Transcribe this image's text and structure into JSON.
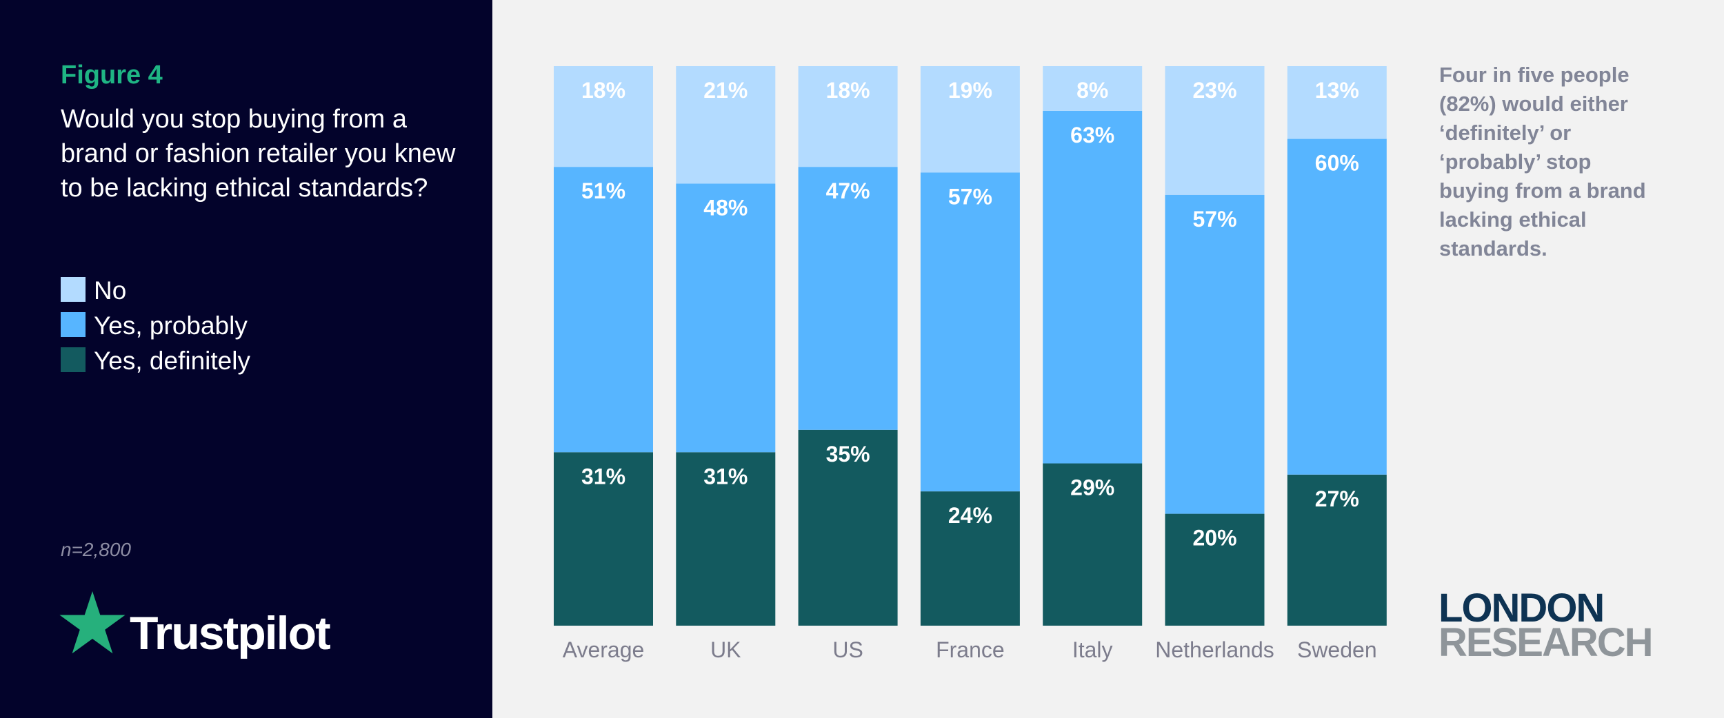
{
  "figure_label": "Figure 4",
  "question": "Would you stop buying from a brand or fashion retailer you knew to be lacking ethical standards?",
  "legend": [
    {
      "label": "No",
      "color": "#b3dbff"
    },
    {
      "label": "Yes, probably",
      "color": "#57b5ff"
    },
    {
      "label": "Yes, definitely",
      "color": "#135a5f"
    }
  ],
  "sample_size": "n=2,800",
  "brand": {
    "name": "Trustpilot",
    "star_color": "#26b07c"
  },
  "annotation": "Four in five people (82%) would either ‘definitely’ or ‘probably’ stop buying from a brand lacking ethical standards.",
  "publisher": {
    "line1": "LONDON",
    "line2": "RESEARCH"
  },
  "chart_data": {
    "type": "bar",
    "stacked": true,
    "title": "Would you stop buying from a brand or fashion retailer you knew to be lacking ethical standards?",
    "categories": [
      "Average",
      "UK",
      "US",
      "France",
      "Italy",
      "Netherlands",
      "Sweden"
    ],
    "series": [
      {
        "name": "Yes, definitely",
        "color": "#135a5f",
        "values": [
          31,
          31,
          35,
          24,
          29,
          20,
          27
        ]
      },
      {
        "name": "Yes, probably",
        "color": "#57b5ff",
        "values": [
          51,
          48,
          47,
          57,
          63,
          57,
          60
        ]
      },
      {
        "name": "No",
        "color": "#b3dbff",
        "values": [
          18,
          21,
          18,
          19,
          8,
          23,
          13
        ]
      }
    ],
    "value_suffix": "%",
    "ylim": [
      0,
      100
    ],
    "xlabel": "",
    "ylabel": "",
    "grid": false,
    "legend_position": "left"
  }
}
